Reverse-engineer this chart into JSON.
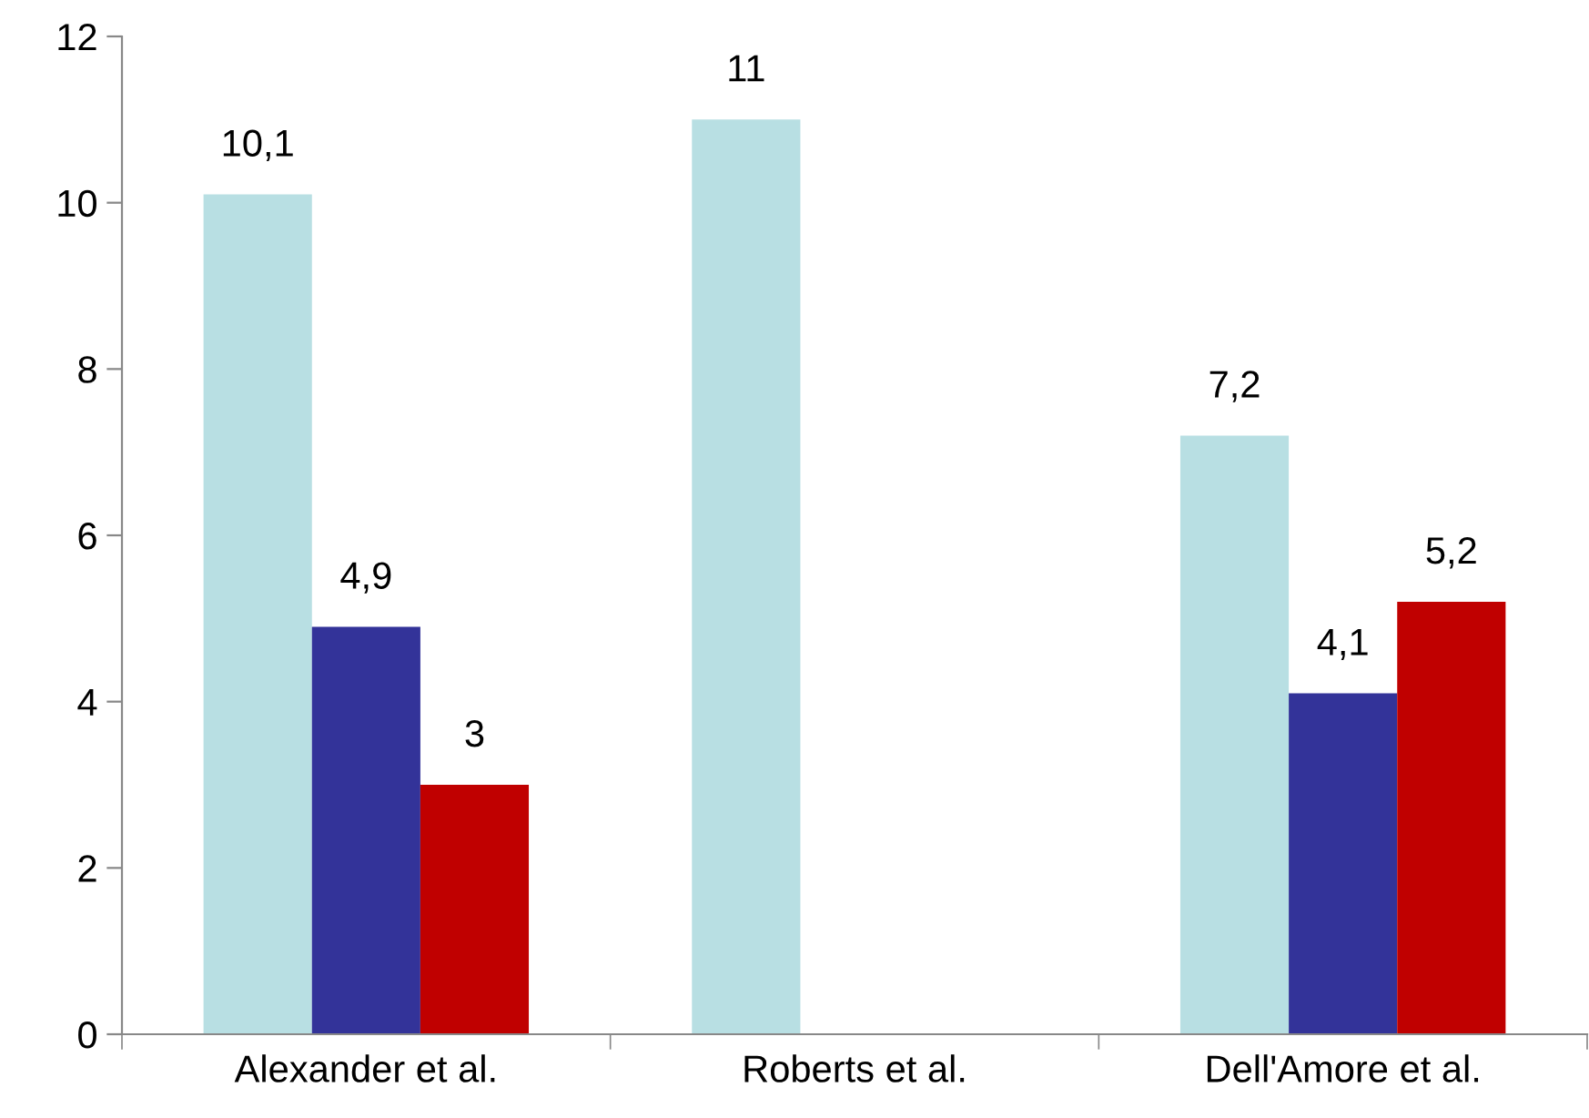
{
  "chart_data": {
    "type": "bar",
    "categories": [
      "Alexander et al.",
      "Roberts et al.",
      "Dell'Amore et al."
    ],
    "series": [
      {
        "color": "#b8dfe3",
        "values": [
          10.1,
          11,
          7.2
        ],
        "value_labels": [
          "10,1",
          "11",
          "7,2"
        ]
      },
      {
        "color": "#333399",
        "values": [
          4.9,
          null,
          4.1
        ],
        "value_labels": [
          "4,9",
          null,
          "4,1"
        ]
      },
      {
        "color": "#c00000",
        "values": [
          3,
          null,
          5.2
        ],
        "value_labels": [
          "3",
          null,
          "5,2"
        ]
      }
    ],
    "ylim": [
      0,
      12
    ],
    "yticks": [
      0,
      2,
      4,
      6,
      8,
      10,
      12
    ],
    "grid": false,
    "legend": false
  }
}
